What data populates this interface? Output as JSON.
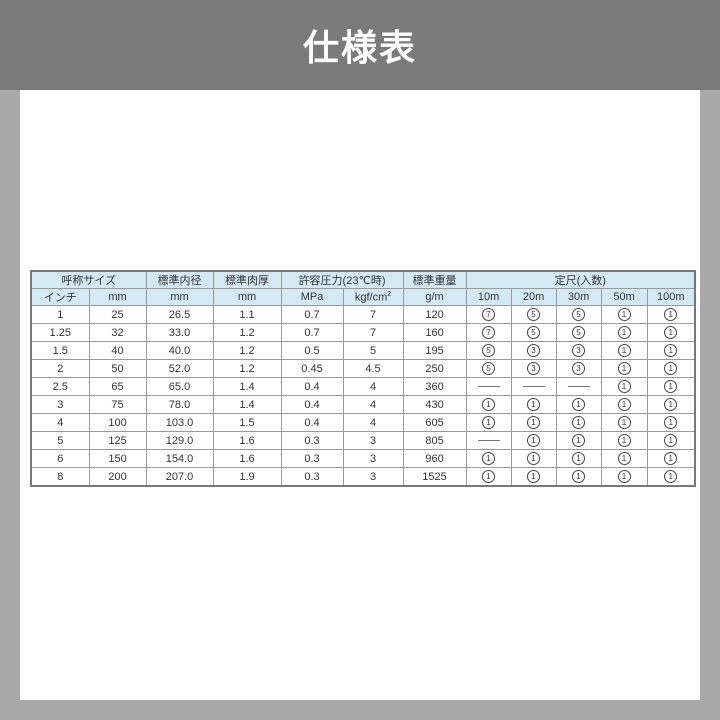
{
  "title": "仕様表",
  "table": {
    "group_headers": [
      "呼称サイズ",
      "標準内径",
      "標準肉厚",
      "許容圧力(23℃時)",
      "標準重量",
      "定尺(入数)"
    ],
    "unit_headers": [
      "インチ",
      "mm",
      "mm",
      "mm",
      "MPa",
      "kgf/cm",
      "g/m",
      "10m",
      "20m",
      "30m",
      "50m",
      "100m"
    ],
    "unit_superscript": "2",
    "rows": [
      [
        "1",
        "25",
        "26.5",
        "1.1",
        "0.7",
        "7",
        "120",
        "7",
        "5",
        "5",
        "1",
        "1"
      ],
      [
        "1.25",
        "32",
        "33.0",
        "1.2",
        "0.7",
        "7",
        "160",
        "7",
        "5",
        "5",
        "1",
        "1"
      ],
      [
        "1.5",
        "40",
        "40.0",
        "1.2",
        "0.5",
        "5",
        "195",
        "5",
        "3",
        "3",
        "1",
        "1"
      ],
      [
        "2",
        "50",
        "52.0",
        "1.2",
        "0.45",
        "4.5",
        "250",
        "5",
        "3",
        "3",
        "1",
        "1"
      ],
      [
        "2.5",
        "65",
        "65.0",
        "1.4",
        "0.4",
        "4",
        "360",
        "—",
        "—",
        "—",
        "1",
        "1"
      ],
      [
        "3",
        "75",
        "78.0",
        "1.4",
        "0.4",
        "4",
        "430",
        "1",
        "1",
        "1",
        "1",
        "1"
      ],
      [
        "4",
        "100",
        "103.0",
        "1.5",
        "0.4",
        "4",
        "605",
        "1",
        "1",
        "1",
        "1",
        "1"
      ],
      [
        "5",
        "125",
        "129.0",
        "1.6",
        "0.3",
        "3",
        "805",
        "—",
        "1",
        "1",
        "1",
        "1"
      ],
      [
        "6",
        "150",
        "154.0",
        "1.6",
        "0.3",
        "3",
        "960",
        "1",
        "1",
        "1",
        "1",
        "1"
      ],
      [
        "8",
        "200",
        "207.0",
        "1.9",
        "0.3",
        "3",
        "1525",
        "1",
        "1",
        "1",
        "1",
        "1"
      ]
    ]
  },
  "colors": {
    "header_bg": "#d3eaf5",
    "topbar_bg": "#7b7b7b"
  }
}
